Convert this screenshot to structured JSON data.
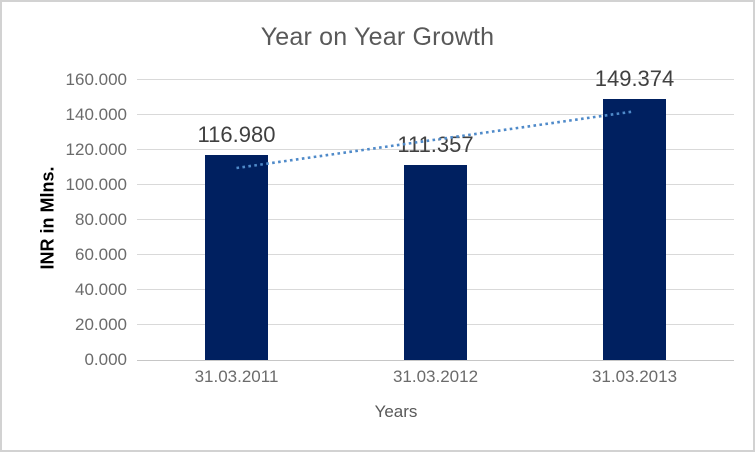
{
  "chart_data": {
    "type": "bar",
    "title": "Year on Year Growth",
    "categories": [
      "31.03.2011",
      "31.03.2012",
      "31.03.2013"
    ],
    "values": [
      116.98,
      111.357,
      149.374
    ],
    "data_labels": [
      "116.980",
      "111.357",
      "149.374"
    ],
    "xlabel": "Years",
    "ylabel": "INR in Mlns.",
    "ylim": [
      0,
      160
    ],
    "ytick_step": 20,
    "ytick_labels": [
      "0.000",
      "20.000",
      "40.000",
      "60.000",
      "80.000",
      "100.000",
      "120.000",
      "140.000",
      "160.000"
    ],
    "grid": true,
    "legend": "none",
    "trendline": {
      "type": "linear",
      "style": "dotted"
    }
  },
  "colors": {
    "bar": "#002060",
    "trendline": "#4f8ac9",
    "gridline": "#d9d9d9",
    "axis_line": "#c6c6c6",
    "title_text": "#595959",
    "tick_text": "#6b6b6b",
    "data_label_text": "#404040",
    "y_title_text": "#000000",
    "border": "#d2d2d2",
    "background": "#ffffff"
  }
}
